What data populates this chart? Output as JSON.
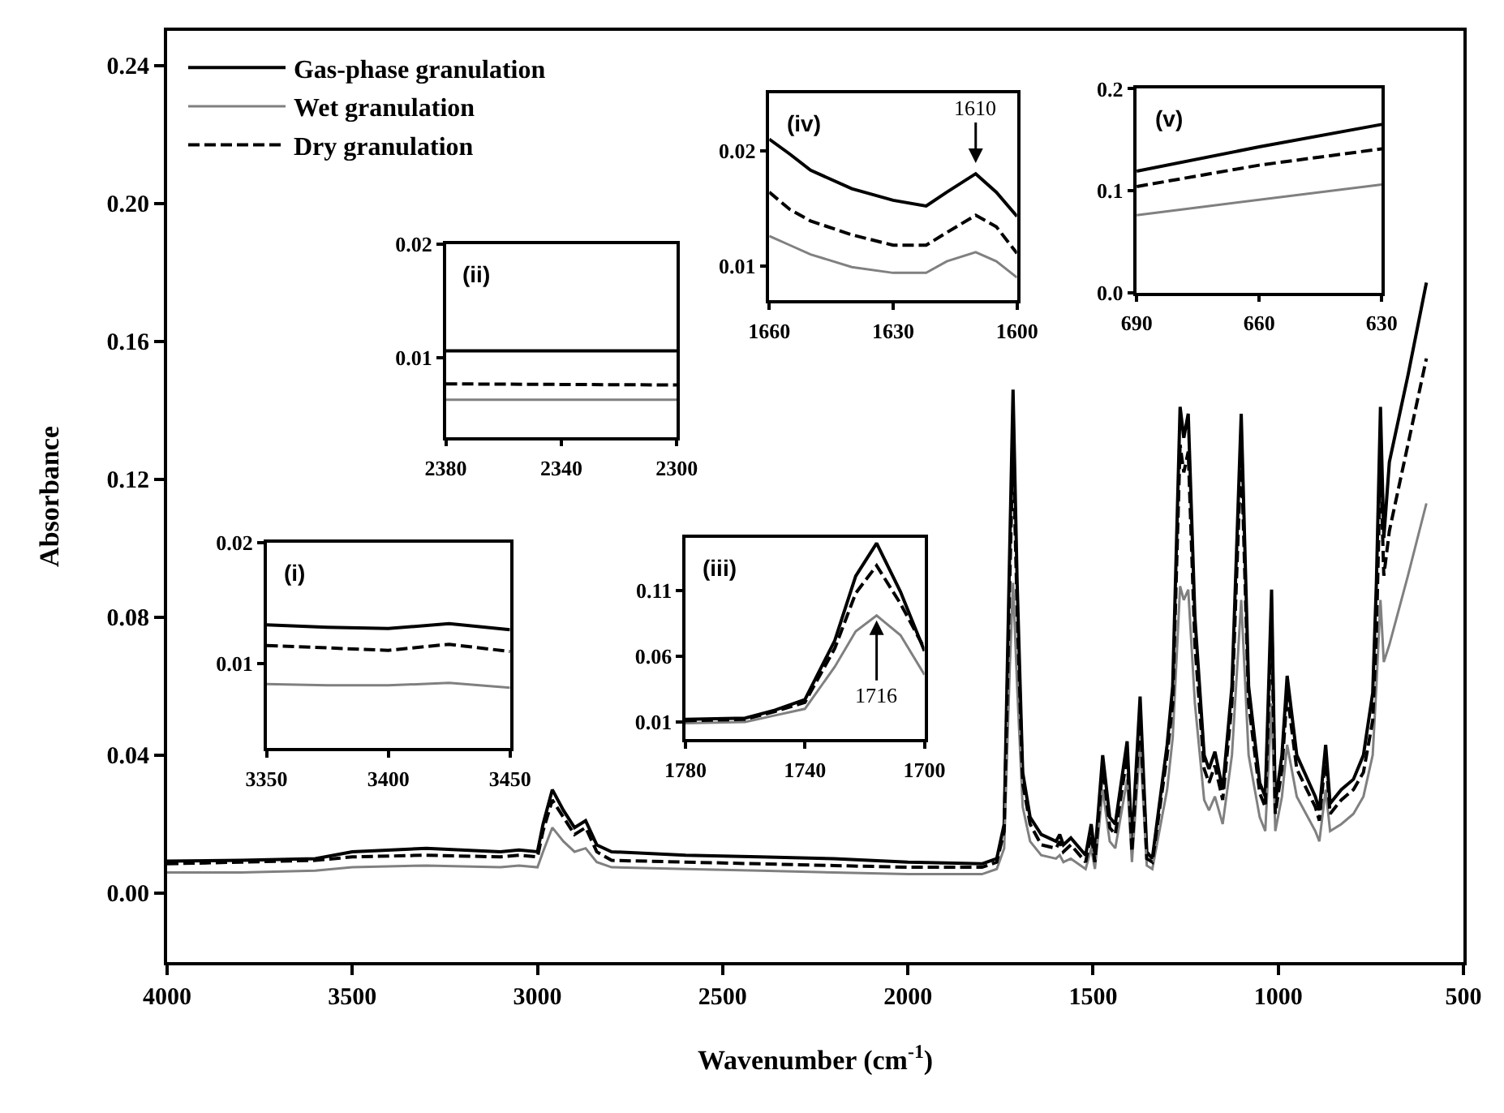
{
  "chart_data": [
    {
      "type": "line",
      "xlabel": "Wavenumber (cm$^{-1}$)",
      "ylabel": "Absorbance",
      "legend": "top left",
      "xlim": [
        4000,
        500
      ],
      "xticks": [
        4000,
        3500,
        3000,
        2500,
        2000,
        1500,
        1000,
        500
      ],
      "ylim": [
        -0.02,
        0.25
      ],
      "yticks": [
        {
          "value": 0,
          "label": "0.00"
        },
        {
          "value": 0.04,
          "label": "0.04"
        },
        {
          "value": 0.08,
          "label": "0.08"
        },
        {
          "value": 0.12,
          "label": "0.12"
        },
        {
          "value": 0.16,
          "label": "0.16"
        },
        {
          "value": 0.2,
          "label": "0.20"
        },
        {
          "value": 0.24,
          "label": "0.24"
        }
      ],
      "x": [
        4000,
        3800,
        3600,
        3500,
        3300,
        3100,
        3050,
        3000,
        2985,
        2960,
        2930,
        2900,
        2870,
        2840,
        2800,
        2600,
        2400,
        2200,
        2000,
        1800,
        1760,
        1740,
        1725,
        1716,
        1705,
        1690,
        1670,
        1640,
        1600,
        1590,
        1580,
        1560,
        1520,
        1505,
        1495,
        1474,
        1455,
        1440,
        1408,
        1395,
        1373,
        1355,
        1340,
        1300,
        1285,
        1265,
        1255,
        1243,
        1225,
        1200,
        1187,
        1171,
        1150,
        1125,
        1100,
        1080,
        1050,
        1035,
        1018,
        1008,
        990,
        976,
        950,
        900,
        889,
        872,
        860,
        830,
        797,
        770,
        745,
        735,
        724,
        715,
        700,
        650,
        600
      ],
      "series": [
        {
          "name": "Gas-phase granulation",
          "color": "#000000",
          "line_style": "solid",
          "values": [
            0.0093,
            0.0095,
            0.01,
            0.012,
            0.013,
            0.012,
            0.0125,
            0.012,
            0.02,
            0.03,
            0.024,
            0.019,
            0.021,
            0.014,
            0.012,
            0.011,
            0.0105,
            0.01,
            0.009,
            0.0085,
            0.01,
            0.02,
            0.1,
            0.146,
            0.09,
            0.035,
            0.022,
            0.017,
            0.015,
            0.017,
            0.014,
            0.016,
            0.011,
            0.02,
            0.011,
            0.04,
            0.022,
            0.02,
            0.044,
            0.014,
            0.057,
            0.012,
            0.01,
            0.043,
            0.06,
            0.141,
            0.132,
            0.139,
            0.08,
            0.04,
            0.036,
            0.041,
            0.03,
            0.06,
            0.139,
            0.06,
            0.032,
            0.028,
            0.088,
            0.026,
            0.04,
            0.063,
            0.04,
            0.028,
            0.024,
            0.043,
            0.026,
            0.03,
            0.033,
            0.04,
            0.058,
            0.09,
            0.141,
            0.103,
            0.125,
            0.15,
            0.177
          ]
        },
        {
          "name": "Wet granulation",
          "color": "#808080",
          "line_style": "solid",
          "values": [
            0.006,
            0.006,
            0.0065,
            0.0075,
            0.008,
            0.0075,
            0.008,
            0.0075,
            0.012,
            0.019,
            0.015,
            0.012,
            0.013,
            0.009,
            0.0075,
            0.007,
            0.0065,
            0.006,
            0.0055,
            0.0055,
            0.007,
            0.013,
            0.065,
            0.09,
            0.06,
            0.025,
            0.015,
            0.011,
            0.01,
            0.011,
            0.009,
            0.01,
            0.007,
            0.013,
            0.007,
            0.03,
            0.015,
            0.013,
            0.033,
            0.009,
            0.043,
            0.008,
            0.007,
            0.03,
            0.045,
            0.089,
            0.085,
            0.088,
            0.055,
            0.027,
            0.024,
            0.028,
            0.02,
            0.04,
            0.085,
            0.04,
            0.022,
            0.018,
            0.055,
            0.018,
            0.028,
            0.043,
            0.028,
            0.018,
            0.015,
            0.03,
            0.018,
            0.02,
            0.023,
            0.028,
            0.04,
            0.06,
            0.085,
            0.067,
            0.072,
            0.092,
            0.113
          ]
        },
        {
          "name": "Dry granulation",
          "color": "#000000",
          "line_style": "dashed",
          "values": [
            0.0085,
            0.009,
            0.0095,
            0.0105,
            0.011,
            0.0105,
            0.011,
            0.0105,
            0.018,
            0.027,
            0.022,
            0.017,
            0.019,
            0.012,
            0.0095,
            0.009,
            0.0085,
            0.008,
            0.0075,
            0.0075,
            0.009,
            0.018,
            0.09,
            0.13,
            0.082,
            0.032,
            0.02,
            0.014,
            0.013,
            0.015,
            0.012,
            0.014,
            0.009,
            0.017,
            0.009,
            0.037,
            0.019,
            0.017,
            0.04,
            0.012,
            0.052,
            0.01,
            0.009,
            0.04,
            0.055,
            0.13,
            0.122,
            0.128,
            0.072,
            0.036,
            0.032,
            0.037,
            0.027,
            0.055,
            0.128,
            0.055,
            0.029,
            0.025,
            0.08,
            0.023,
            0.036,
            0.058,
            0.036,
            0.025,
            0.021,
            0.04,
            0.023,
            0.027,
            0.03,
            0.035,
            0.05,
            0.075,
            0.125,
            0.092,
            0.105,
            0.13,
            0.155
          ]
        }
      ]
    },
    {
      "type": "line",
      "annotations": [
        "(i)"
      ],
      "xlim": [
        3350,
        3450
      ],
      "xticks": [
        3350,
        3400,
        3450
      ],
      "ylim": [
        0.003,
        0.02
      ],
      "yticks": [
        0.01,
        0.02
      ],
      "x": [
        3350,
        3375,
        3400,
        3425,
        3450
      ],
      "series": [
        {
          "color": "#000000",
          "line_style": "solid",
          "values": [
            0.0132,
            0.013,
            0.0129,
            0.0133,
            0.0128
          ]
        },
        {
          "color": "#808080",
          "line_style": "solid",
          "values": [
            0.0083,
            0.0082,
            0.0082,
            0.0084,
            0.008
          ]
        },
        {
          "color": "#000000",
          "line_style": "dashed",
          "values": [
            0.0115,
            0.0113,
            0.0111,
            0.0116,
            0.011
          ]
        }
      ]
    },
    {
      "type": "line",
      "annotations": [
        "(ii)"
      ],
      "xlim": [
        2380,
        2300
      ],
      "xticks": [
        2380,
        2340,
        2300
      ],
      "ylim": [
        0.003,
        0.02
      ],
      "yticks": [
        0.01,
        0.02
      ],
      "x": [
        2380,
        2300
      ],
      "series": [
        {
          "color": "#000000",
          "line_style": "solid",
          "values": [
            0.0106,
            0.0106
          ]
        },
        {
          "color": "#808080",
          "line_style": "solid",
          "values": [
            0.0063,
            0.0063
          ]
        },
        {
          "color": "#000000",
          "line_style": "dashed",
          "values": [
            0.0077,
            0.0076
          ]
        }
      ]
    },
    {
      "type": "line",
      "annotations": [
        "(iii)",
        {
          "text": "1716",
          "x": 1716,
          "y": 0.091
        }
      ],
      "xlim": [
        1780,
        1700
      ],
      "xticks": [
        1780,
        1740,
        1700
      ],
      "ylim": [
        -0.003,
        0.15
      ],
      "yticks": [
        0.01,
        0.06,
        0.11
      ],
      "x": [
        1780,
        1760,
        1750,
        1740,
        1730,
        1723,
        1716,
        1708,
        1700
      ],
      "series": [
        {
          "color": "#000000",
          "line_style": "solid",
          "values": [
            0.012,
            0.013,
            0.019,
            0.027,
            0.072,
            0.121,
            0.146,
            0.109,
            0.064
          ]
        },
        {
          "color": "#808080",
          "line_style": "solid",
          "values": [
            0.009,
            0.01,
            0.015,
            0.02,
            0.052,
            0.079,
            0.091,
            0.076,
            0.046
          ]
        },
        {
          "color": "#000000",
          "line_style": "dashed",
          "values": [
            0.011,
            0.012,
            0.018,
            0.025,
            0.066,
            0.108,
            0.129,
            0.1,
            0.066
          ]
        }
      ]
    },
    {
      "type": "line",
      "annotations": [
        "(iv)",
        {
          "text": "1610",
          "x": 1610,
          "y": 0.0185
        }
      ],
      "xlim": [
        1660,
        1600
      ],
      "xticks": [
        1660,
        1630,
        1600
      ],
      "ylim": [
        0.007,
        0.025
      ],
      "yticks": [
        0.01,
        0.02
      ],
      "x": [
        1660,
        1655,
        1650,
        1640,
        1630,
        1622,
        1617,
        1610,
        1605,
        1600
      ],
      "series": [
        {
          "color": "#000000",
          "line_style": "solid",
          "values": [
            0.021,
            0.0197,
            0.0183,
            0.0167,
            0.0157,
            0.0152,
            0.0164,
            0.018,
            0.0164,
            0.0143
          ]
        },
        {
          "color": "#808080",
          "line_style": "solid",
          "values": [
            0.0126,
            0.0118,
            0.011,
            0.0099,
            0.0094,
            0.0094,
            0.0104,
            0.0112,
            0.0104,
            0.009
          ]
        },
        {
          "color": "#000000",
          "line_style": "dashed",
          "values": [
            0.0164,
            0.0149,
            0.0139,
            0.0127,
            0.0118,
            0.0118,
            0.0129,
            0.0144,
            0.0134,
            0.0111
          ]
        }
      ]
    },
    {
      "type": "line",
      "annotations": [
        "(v)"
      ],
      "xlim": [
        690,
        630
      ],
      "xticks": [
        690,
        660,
        630
      ],
      "ylim": [
        0,
        0.2
      ],
      "yticks": [
        {
          "value": 0,
          "label": "0.0"
        },
        {
          "value": 0.1,
          "label": "0.1"
        },
        {
          "value": 0.2,
          "label": "0.2"
        }
      ],
      "x": [
        690,
        660,
        630
      ],
      "series": [
        {
          "color": "#000000",
          "line_style": "solid",
          "values": [
            0.119,
            0.143,
            0.165
          ]
        },
        {
          "color": "#808080",
          "line_style": "solid",
          "values": [
            0.076,
            0.091,
            0.106
          ]
        },
        {
          "color": "#000000",
          "line_style": "dashed",
          "values": [
            0.104,
            0.125,
            0.141
          ]
        }
      ]
    }
  ]
}
